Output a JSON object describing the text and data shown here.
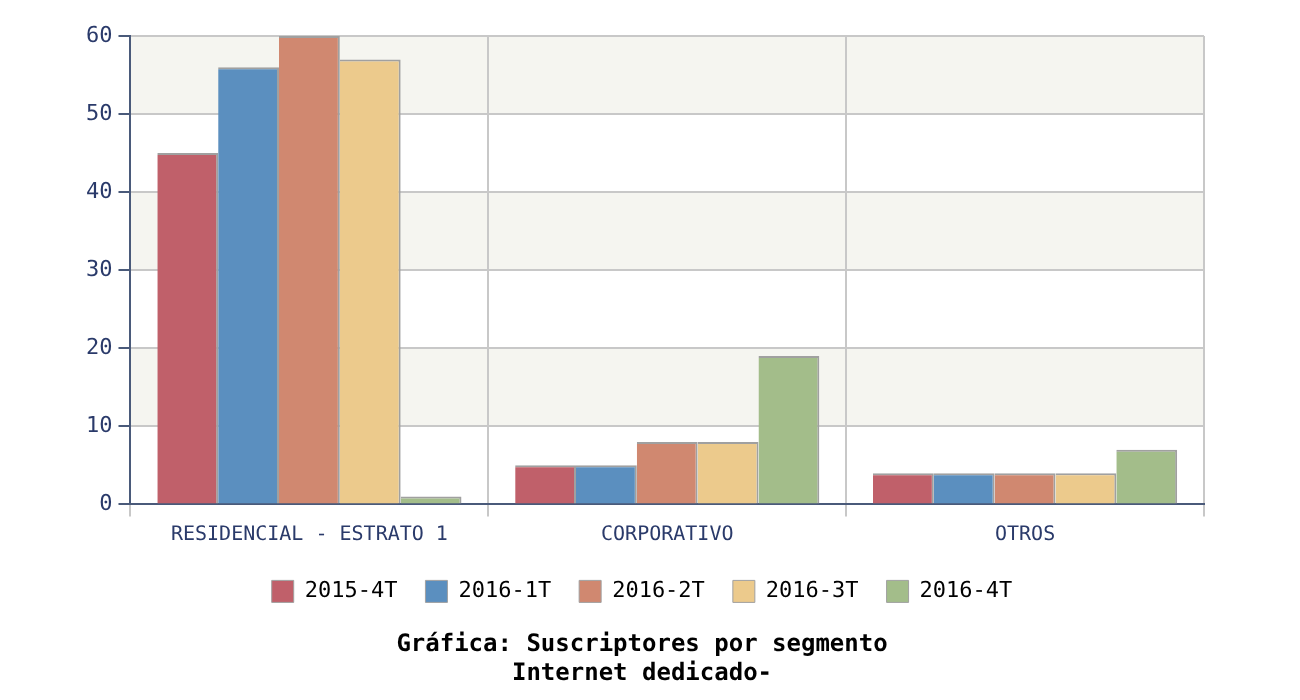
{
  "chart_data": {
    "type": "bar",
    "title": "Gráfica: Suscriptores por segmento",
    "subtitle": "Internet dedicado-",
    "categories": [
      "RESIDENCIAL - ESTRATO 1",
      "CORPORATIVO",
      "OTROS"
    ],
    "series": [
      {
        "name": "2015-4T",
        "color": "#c0606a",
        "values": [
          45,
          5,
          4
        ]
      },
      {
        "name": "2016-1T",
        "color": "#5b8fbf",
        "values": [
          56,
          5,
          4
        ]
      },
      {
        "name": "2016-2T",
        "color": "#d08870",
        "values": [
          60,
          8,
          4
        ]
      },
      {
        "name": "2016-3T",
        "color": "#ecca8c",
        "values": [
          57,
          8,
          4
        ]
      },
      {
        "name": "2016-4T",
        "color": "#a3bd8a",
        "values": [
          1,
          19,
          7
        ]
      }
    ],
    "ylim": [
      0,
      60
    ],
    "yticks": [
      0,
      10,
      20,
      30,
      40,
      50,
      60
    ],
    "grid": true,
    "legend": "bottom"
  }
}
